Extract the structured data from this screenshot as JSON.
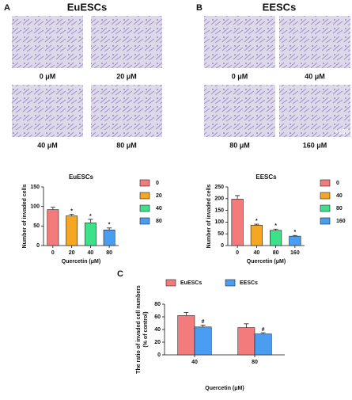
{
  "panels": [
    {
      "letter": "A",
      "title": "EuESCs",
      "images": [
        "0 μM",
        "20 μM",
        "40 μM",
        "80 μM"
      ]
    },
    {
      "letter": "B",
      "title": "EESCs",
      "images": [
        "0 μM",
        "40 μM",
        "80 μM",
        "160 μM"
      ],
      "magnification": "×100"
    }
  ],
  "chart_data": [
    {
      "type": "bar",
      "title": "EuESCs",
      "xlabel": "Quercetin (μM)",
      "ylabel": [
        "Number of invaded cells"
      ],
      "categories": [
        "0",
        "20",
        "40",
        "80"
      ],
      "values": [
        92,
        76,
        58,
        40
      ],
      "errors": [
        6,
        4,
        9,
        5
      ],
      "annotations": [
        null,
        "*",
        "*",
        "*"
      ],
      "colors": [
        "#f47b7b",
        "#f5a623",
        "#3ee08a",
        "#4a9df0"
      ],
      "ylim": [
        0,
        150
      ],
      "yticks": [
        0,
        50,
        100,
        150
      ]
    },
    {
      "type": "bar",
      "title": "EESCs",
      "xlabel": "Quercetin (μM)",
      "ylabel": [
        "Number of invaded cells"
      ],
      "categories": [
        "0",
        "40",
        "80",
        "160"
      ],
      "values": [
        198,
        87,
        65,
        40
      ],
      "errors": [
        15,
        4,
        5,
        3
      ],
      "annotations": [
        null,
        "*",
        "*",
        "*"
      ],
      "colors": [
        "#f47b7b",
        "#f5a623",
        "#3ee08a",
        "#4a9df0"
      ],
      "ylim": [
        0,
        250
      ],
      "yticks": [
        0,
        50,
        100,
        150,
        200,
        250
      ]
    },
    {
      "type": "grouped-bar",
      "letter": "C",
      "xlabel": "Quercetin (μM)",
      "ylabel": [
        "The ratio of invaded cell numbers",
        "(% of control)"
      ],
      "categories": [
        "40",
        "80"
      ],
      "series": [
        {
          "name": "EuESCs",
          "color": "#f47b7b",
          "values": [
            62,
            43
          ],
          "errors": [
            5,
            6
          ],
          "annotations": [
            null,
            null
          ]
        },
        {
          "name": "EESCs",
          "color": "#4a9df0",
          "values": [
            44,
            33
          ],
          "errors": [
            3,
            2
          ],
          "annotations": [
            "#",
            "#"
          ]
        }
      ],
      "ylim": [
        0,
        80
      ],
      "yticks": [
        0,
        20,
        40,
        60,
        80
      ]
    }
  ]
}
